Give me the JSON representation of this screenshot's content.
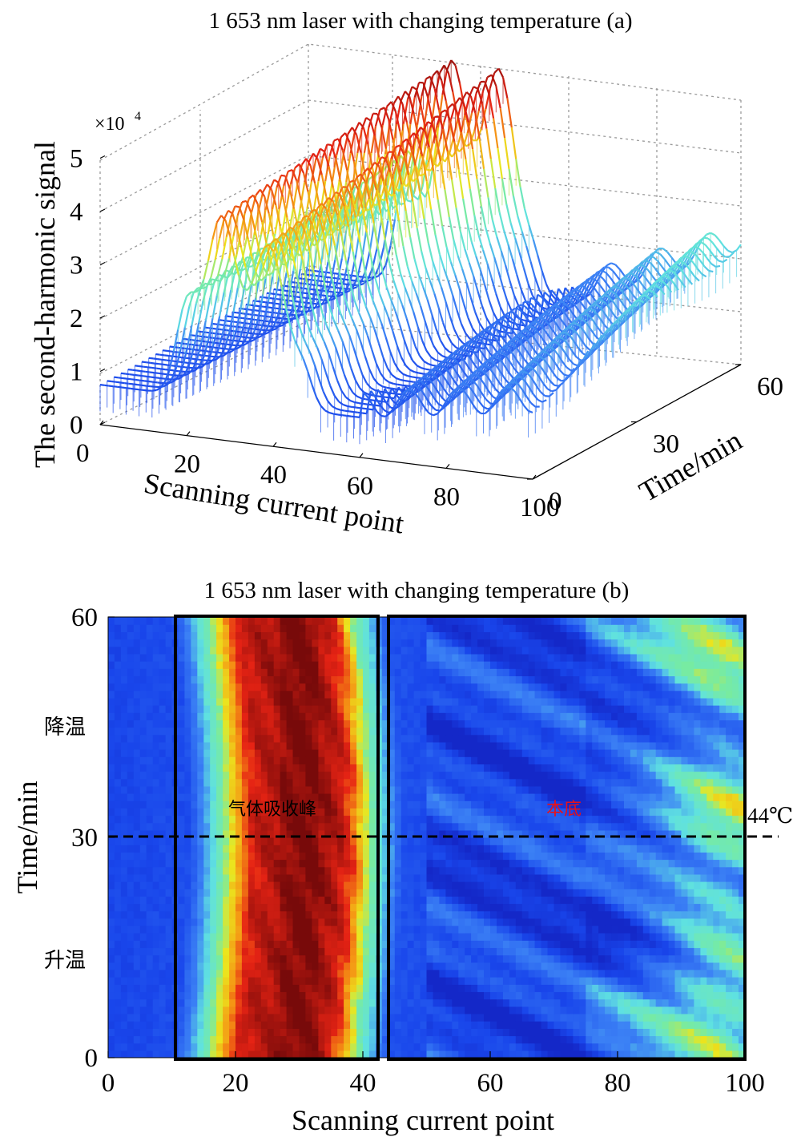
{
  "chart_data": [
    {
      "type": "surface",
      "title": "1 653 nm laser with changing temperature (a)",
      "xlabel": "Scanning current point",
      "ylabel": "Time/min",
      "zlabel": "The second-harmonic signal",
      "z_multiplier": "×10",
      "z_multiplier_exp": "4",
      "xticks": [
        "0",
        "20",
        "40",
        "60",
        "80",
        "100"
      ],
      "yticks": [
        "0",
        "30",
        "60"
      ],
      "zticks": [
        "0",
        "1",
        "2",
        "3",
        "4",
        "5"
      ],
      "xlim": [
        0,
        100
      ],
      "ylim": [
        0,
        60
      ],
      "zlim": [
        0,
        5
      ],
      "colormap": "jet",
      "colors": {
        "low": "#1f3fd8",
        "mid": "#7fe6e0",
        "high": "#e81e12",
        "peak": "#8a0f0f"
      },
      "series": [
        {
          "time": 0,
          "peaks": [
            {
              "x": 20,
              "z": 2.3
            },
            {
              "x": 28,
              "z": 4.1
            },
            {
              "x": 38,
              "z": 3.8
            },
            {
              "x": 45,
              "z": 3.2
            }
          ]
        },
        {
          "time": 30,
          "peaks": [
            {
              "x": 22,
              "z": 3.0
            },
            {
              "x": 30,
              "z": 4.5
            },
            {
              "x": 40,
              "z": 4.6
            }
          ]
        },
        {
          "time": 60,
          "peaks": [
            {
              "x": 24,
              "z": 3.3
            },
            {
              "x": 32,
              "z": 4.8
            },
            {
              "x": 44,
              "z": 5.0
            }
          ]
        }
      ]
    },
    {
      "type": "heatmap",
      "title": "1 653 nm laser with changing temperature (b)",
      "xlabel": "Scanning current point",
      "ylabel": "Time/min",
      "xticks": [
        "0",
        "20",
        "40",
        "60",
        "80",
        "100"
      ],
      "yticks": [
        "0",
        "30",
        "60"
      ],
      "xlim": [
        0,
        100
      ],
      "ylim": [
        0,
        60
      ],
      "colormap": "jet",
      "annotations": {
        "heating": "升温",
        "cooling": "降温",
        "absorption_label": "气体吸收峰",
        "background_label": "本底",
        "temp_label": "44℃",
        "absorption_range": [
          11,
          43
        ],
        "background_range": [
          45,
          100
        ],
        "temp_line_time": 30
      },
      "profile_x": [
        0,
        10,
        11,
        13,
        15,
        17,
        19,
        20,
        22,
        24,
        26,
        28,
        30,
        32,
        34,
        36,
        38,
        40,
        42,
        43,
        44,
        48,
        52,
        56,
        60,
        64,
        68,
        72,
        76,
        80,
        84,
        88,
        92,
        96,
        100
      ],
      "profile_level": [
        0.12,
        0.14,
        0.2,
        0.35,
        0.5,
        0.65,
        0.78,
        0.86,
        0.9,
        0.92,
        0.94,
        0.96,
        0.96,
        0.94,
        0.9,
        0.8,
        0.62,
        0.45,
        0.32,
        0.22,
        0.15,
        0.14,
        0.12,
        0.12,
        0.12,
        0.13,
        0.12,
        0.13,
        0.16,
        0.2,
        0.26,
        0.34,
        0.42,
        0.45,
        0.4
      ]
    }
  ]
}
